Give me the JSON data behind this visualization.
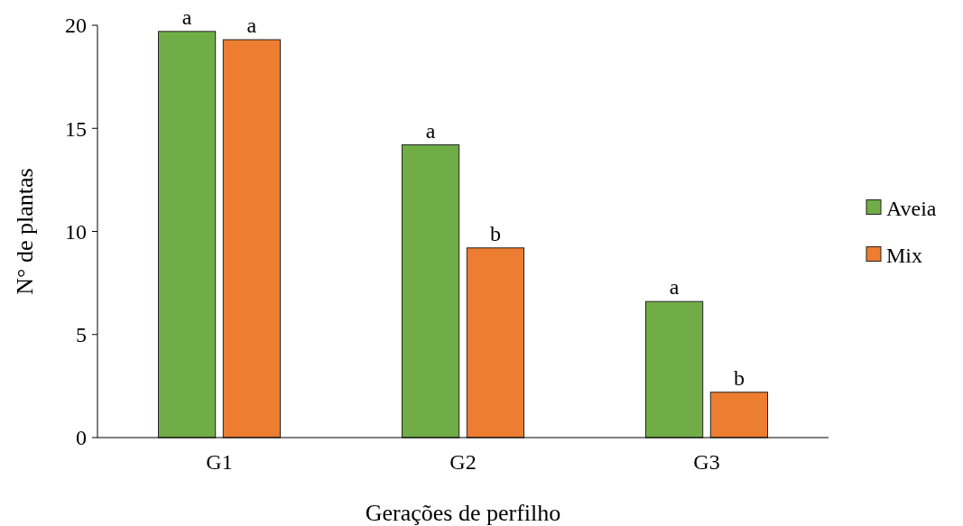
{
  "chart_data": {
    "type": "bar",
    "xlabel": "Gerações de perfilho",
    "ylabel": "N° de plantas",
    "categories": [
      "G1",
      "G2",
      "G3"
    ],
    "series": [
      {
        "name": "Aveia",
        "color": "#70ad47",
        "values": [
          19.7,
          14.2,
          6.6
        ]
      },
      {
        "name": "Mix",
        "color": "#ed7d31",
        "values": [
          19.3,
          9.2,
          2.2
        ]
      }
    ],
    "ylim": [
      0,
      20
    ],
    "yticks": [
      0,
      5,
      10,
      15,
      20
    ],
    "grid": false,
    "legend": "right",
    "annotations": [
      {
        "text": "a",
        "x": "G1",
        "y": 19.7
      },
      {
        "text": "a",
        "x": "G1",
        "y": 19.3
      },
      {
        "text": "a",
        "x": "G2",
        "y": 14.2
      },
      {
        "text": "b",
        "x": "G2",
        "y": 9.2
      },
      {
        "text": "a",
        "x": "G3",
        "y": 6.6
      },
      {
        "text": "b",
        "x": "G3",
        "y": 2.2
      }
    ]
  }
}
